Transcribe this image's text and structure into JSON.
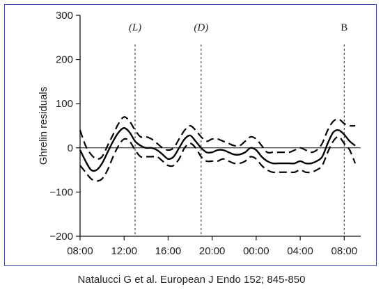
{
  "caption": "Natalucci G et al. European J Endo 152; 845-850",
  "chart_data": {
    "type": "line",
    "title": "",
    "xlabel": "",
    "ylabel": "Ghrelin residuals",
    "ylim": [
      -200,
      300
    ],
    "yticks": [
      -200,
      -100,
      0,
      100,
      200,
      300
    ],
    "ytick_labels": [
      "−200",
      "−100",
      "0",
      "100",
      "200",
      "300"
    ],
    "xlim": [
      8,
      33.5
    ],
    "xticks": [
      8,
      12,
      16,
      20,
      24,
      28,
      32
    ],
    "xtick_labels": [
      "08:00",
      "12:00",
      "16:00",
      "20:00",
      "00:00",
      "04:00",
      "08:00"
    ],
    "zero_line": true,
    "markers": [
      {
        "label": "(L)",
        "x": 13,
        "italic": true
      },
      {
        "label": "(D)",
        "x": 19,
        "italic": true
      },
      {
        "label": "B",
        "x": 32,
        "italic": false
      }
    ],
    "series": [
      {
        "style": "solid",
        "x": [
          8,
          8.5,
          9,
          9.5,
          10,
          10.5,
          11,
          11.5,
          12,
          12.5,
          13,
          13.5,
          14,
          14.5,
          15,
          15.5,
          16,
          16.5,
          17,
          17.5,
          18,
          18.5,
          19,
          19.5,
          20,
          20.5,
          21,
          21.5,
          22,
          22.5,
          23,
          23.5,
          24,
          24.5,
          25,
          25.5,
          26,
          26.5,
          27,
          27.5,
          28,
          28.5,
          29,
          29.5,
          30,
          30.5,
          31,
          31.5,
          32,
          32.5,
          33
        ],
        "y": [
          -5,
          -30,
          -50,
          -50,
          -35,
          -10,
          15,
          35,
          45,
          35,
          15,
          5,
          0,
          0,
          -5,
          -15,
          -25,
          -20,
          0,
          20,
          28,
          15,
          0,
          -10,
          -10,
          -5,
          -5,
          -10,
          -15,
          -15,
          -10,
          0,
          -5,
          -20,
          -30,
          -35,
          -35,
          -35,
          -35,
          -35,
          -30,
          -35,
          -35,
          -30,
          -20,
          10,
          35,
          40,
          30,
          15,
          5
        ]
      },
      {
        "style": "dashed",
        "x": [
          8,
          8.5,
          9,
          9.5,
          10,
          10.5,
          11,
          11.5,
          12,
          12.5,
          13,
          13.5,
          14,
          14.5,
          15,
          15.5,
          16,
          16.5,
          17,
          17.5,
          18,
          18.5,
          19,
          19.5,
          20,
          20.5,
          21,
          21.5,
          22,
          22.5,
          23,
          23.5,
          24,
          24.5,
          25,
          25.5,
          26,
          26.5,
          27,
          27.5,
          28,
          28.5,
          29,
          29.5,
          30,
          30.5,
          31,
          31.5,
          32,
          32.5,
          33
        ],
        "y": [
          40,
          5,
          -15,
          -25,
          -20,
          5,
          30,
          55,
          70,
          60,
          40,
          25,
          25,
          20,
          10,
          0,
          -5,
          0,
          20,
          40,
          50,
          40,
          25,
          15,
          20,
          20,
          15,
          10,
          5,
          5,
          15,
          25,
          20,
          5,
          -10,
          -10,
          -10,
          -10,
          -10,
          -5,
          0,
          -5,
          -10,
          -5,
          10,
          40,
          60,
          65,
          55,
          50,
          50
        ]
      },
      {
        "style": "dashed",
        "x": [
          8,
          8.5,
          9,
          9.5,
          10,
          10.5,
          11,
          11.5,
          12,
          12.5,
          13,
          13.5,
          14,
          14.5,
          15,
          15.5,
          16,
          16.5,
          17,
          17.5,
          18,
          18.5,
          19,
          19.5,
          20,
          20.5,
          21,
          21.5,
          22,
          22.5,
          23,
          23.5,
          24,
          24.5,
          25,
          25.5,
          26,
          26.5,
          27,
          27.5,
          28,
          28.5,
          29,
          29.5,
          30,
          30.5,
          31,
          31.5,
          32,
          32.5,
          33
        ],
        "y": [
          -40,
          -55,
          -70,
          -75,
          -70,
          -50,
          -20,
          5,
          20,
          15,
          -5,
          -20,
          -20,
          -20,
          -20,
          -30,
          -40,
          -40,
          -25,
          0,
          10,
          0,
          -20,
          -30,
          -30,
          -30,
          -25,
          -30,
          -35,
          -35,
          -30,
          -20,
          -25,
          -40,
          -50,
          -55,
          -55,
          -55,
          -55,
          -55,
          -50,
          -55,
          -55,
          -50,
          -40,
          -10,
          15,
          25,
          10,
          -5,
          -35
        ]
      }
    ]
  }
}
